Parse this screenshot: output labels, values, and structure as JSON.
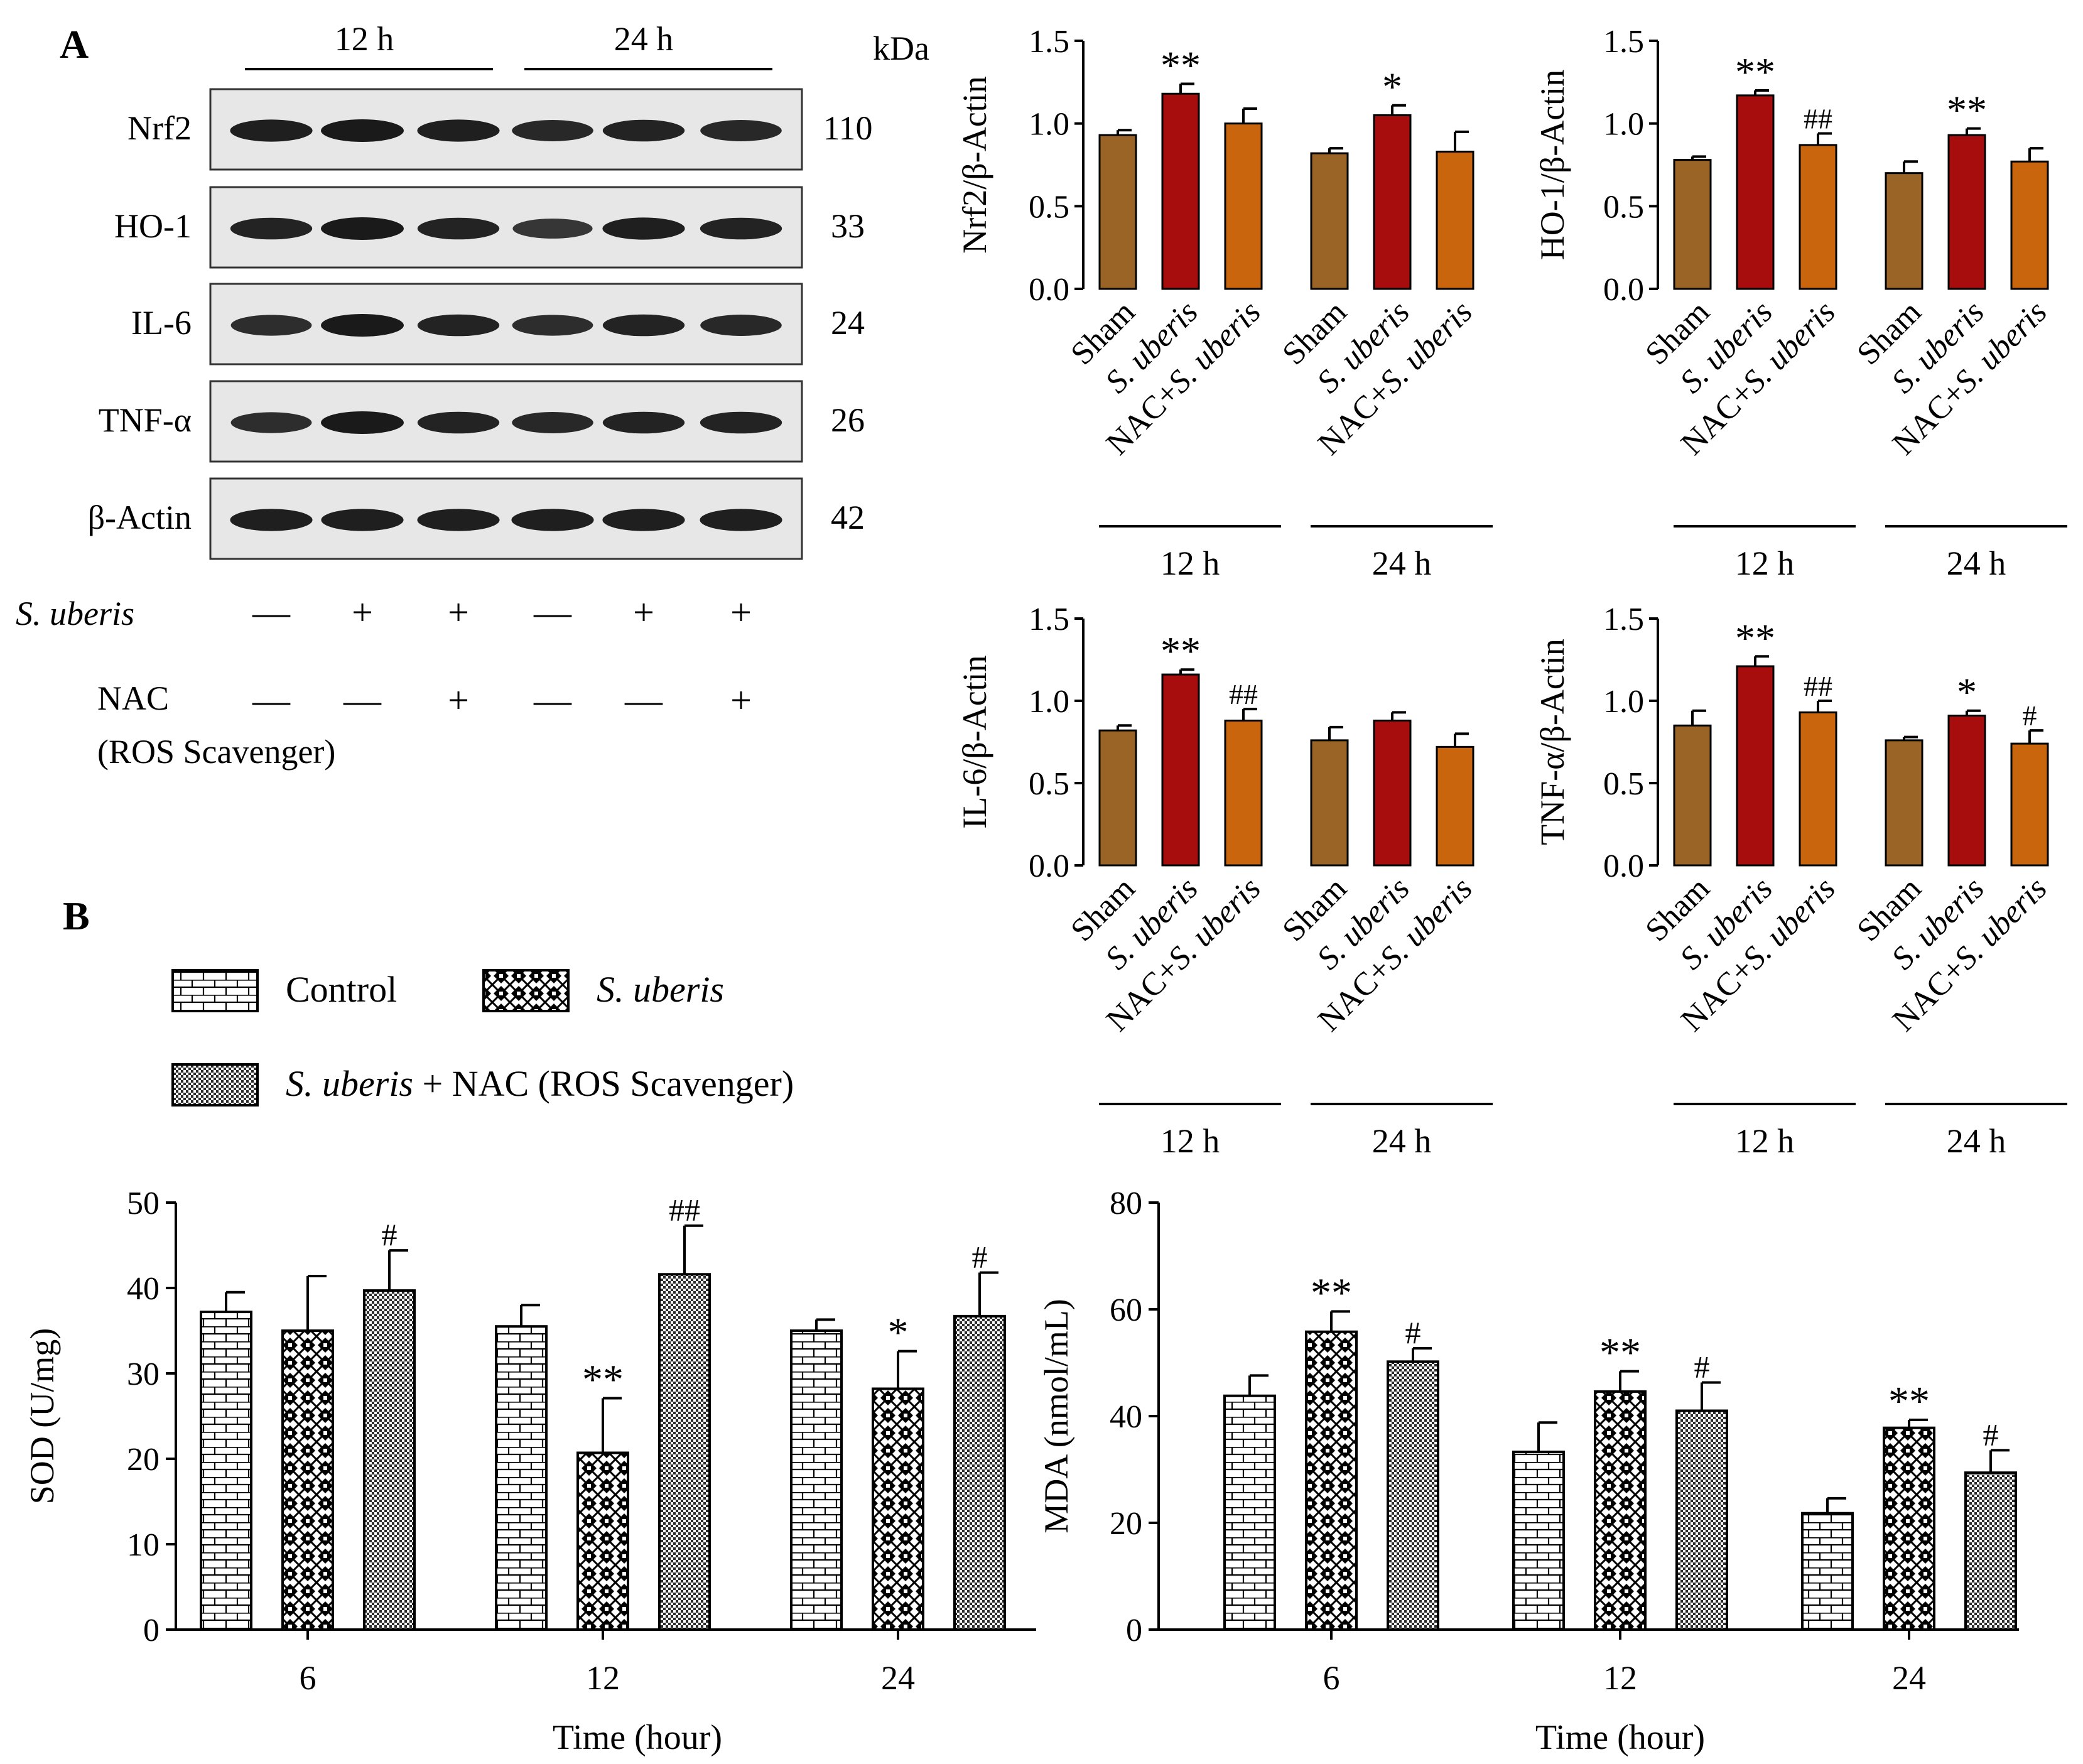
{
  "panel_labels": {
    "a": "A",
    "b": "B"
  },
  "colors": {
    "sham": "#9a6427",
    "s_uberis": "#a80d0d",
    "nac": "#c9650c",
    "blot_bg": "#e7e7e7",
    "band": "#1a1a1a"
  },
  "blot": {
    "time_labels": [
      "12 h",
      "24 h"
    ],
    "kda_header": "kDa",
    "proteins": [
      {
        "name": "Nrf2",
        "kda": "110",
        "intensity": [
          0.95,
          1.0,
          0.95,
          0.85,
          0.9,
          0.85
        ]
      },
      {
        "name": "HO-1",
        "kda": "33",
        "intensity": [
          0.9,
          1.0,
          0.9,
          0.7,
          0.95,
          0.9
        ]
      },
      {
        "name": "IL-6",
        "kda": "24",
        "intensity": [
          0.8,
          1.0,
          0.9,
          0.8,
          0.9,
          0.85
        ]
      },
      {
        "name": "TNF-α",
        "kda": "26",
        "intensity": [
          0.8,
          1.0,
          0.9,
          0.85,
          0.9,
          0.9
        ]
      },
      {
        "name": "β-Actin",
        "kda": "42",
        "intensity": [
          0.95,
          0.95,
          0.95,
          0.95,
          0.95,
          0.95
        ]
      }
    ],
    "treatments": [
      {
        "label": "S. uberis",
        "signs": [
          "—",
          "+",
          "+",
          "—",
          "+",
          "+"
        ]
      },
      {
        "label": "NAC",
        "label2": "(ROS Scavenger)",
        "signs": [
          "—",
          "—",
          "+",
          "—",
          "—",
          "+"
        ]
      }
    ]
  },
  "chart_data": [
    {
      "type": "bar",
      "ylabel": "Nrf2/β-Actin",
      "ylim": [
        0,
        1.5
      ],
      "yticks": [
        "0.0",
        "0.5",
        "1.0",
        "1.5"
      ],
      "categories": [
        "Sham",
        "S. uberis",
        "NAC+S. uberis"
      ],
      "groups": [
        "12 h",
        "24 h"
      ],
      "values": [
        [
          0.93,
          1.18,
          1.0
        ],
        [
          0.82,
          1.05,
          0.83
        ]
      ],
      "errors": [
        [
          0.03,
          0.06,
          0.09
        ],
        [
          0.03,
          0.06,
          0.12
        ]
      ],
      "annotations": [
        [
          "",
          "**",
          ""
        ],
        [
          "",
          "*",
          ""
        ]
      ]
    },
    {
      "type": "bar",
      "ylabel": "HO-1/β-Actin",
      "ylim": [
        0,
        1.5
      ],
      "yticks": [
        "0.0",
        "0.5",
        "1.0",
        "1.5"
      ],
      "categories": [
        "Sham",
        "S. uberis",
        "NAC+S. uberis"
      ],
      "groups": [
        "12 h",
        "24 h"
      ],
      "values": [
        [
          0.78,
          1.17,
          0.87
        ],
        [
          0.7,
          0.93,
          0.77
        ]
      ],
      "errors": [
        [
          0.02,
          0.03,
          0.07
        ],
        [
          0.07,
          0.04,
          0.08
        ]
      ],
      "annotations": [
        [
          "",
          "**",
          "##"
        ],
        [
          "",
          "**",
          ""
        ]
      ]
    },
    {
      "type": "bar",
      "ylabel": "IL-6/β-Actin",
      "ylim": [
        0,
        1.5
      ],
      "yticks": [
        "0.0",
        "0.5",
        "1.0",
        "1.5"
      ],
      "categories": [
        "Sham",
        "S. uberis",
        "NAC+S. uberis"
      ],
      "groups": [
        "12 h",
        "24 h"
      ],
      "values": [
        [
          0.82,
          1.16,
          0.88
        ],
        [
          0.76,
          0.88,
          0.72
        ]
      ],
      "errors": [
        [
          0.03,
          0.03,
          0.07
        ],
        [
          0.08,
          0.05,
          0.08
        ]
      ],
      "annotations": [
        [
          "",
          "**",
          "##"
        ],
        [
          "",
          "",
          ""
        ]
      ]
    },
    {
      "type": "bar",
      "ylabel": "TNF-α/β-Actin",
      "ylim": [
        0,
        1.5
      ],
      "yticks": [
        "0.0",
        "0.5",
        "1.0",
        "1.5"
      ],
      "categories": [
        "Sham",
        "S. uberis",
        "NAC+S. uberis"
      ],
      "groups": [
        "12 h",
        "24 h"
      ],
      "values": [
        [
          0.85,
          1.21,
          0.93
        ],
        [
          0.76,
          0.91,
          0.74
        ]
      ],
      "errors": [
        [
          0.09,
          0.06,
          0.07
        ],
        [
          0.02,
          0.03,
          0.08
        ]
      ],
      "annotations": [
        [
          "",
          "**",
          "##"
        ],
        [
          "",
          "*",
          "#"
        ]
      ]
    },
    {
      "type": "bar",
      "ylabel": "SOD (U/mg)",
      "xlabel": "Time (hour)",
      "ylim": [
        0,
        50
      ],
      "yticks": [
        "0",
        "10",
        "20",
        "30",
        "40",
        "50"
      ],
      "categories": [
        "6",
        "12",
        "24"
      ],
      "series_names": [
        "Control",
        "S. uberis",
        "S. uberis + NAC (ROS Scavenger)"
      ],
      "values": [
        [
          37.2,
          35.0,
          39.7
        ],
        [
          35.5,
          20.7,
          41.6
        ],
        [
          35.0,
          28.2,
          36.7
        ]
      ],
      "errors": [
        [
          2.3,
          6.4,
          4.7
        ],
        [
          2.5,
          6.4,
          5.7
        ],
        [
          1.3,
          4.4,
          5.1
        ]
      ],
      "annotations": [
        [
          "",
          "",
          "#"
        ],
        [
          "",
          "**",
          "##"
        ],
        [
          "",
          "*",
          "#"
        ]
      ]
    },
    {
      "type": "bar",
      "ylabel": "MDA (nmol/mL)",
      "xlabel": "Time (hour)",
      "ylim": [
        0,
        80
      ],
      "yticks": [
        "0",
        "20",
        "40",
        "60",
        "80"
      ],
      "categories": [
        "6",
        "12",
        "24"
      ],
      "series_names": [
        "Control",
        "S. uberis",
        "S. uberis + NAC (ROS Scavenger)"
      ],
      "values": [
        [
          43.8,
          55.8,
          50.2
        ],
        [
          33.3,
          44.6,
          41.0
        ],
        [
          21.8,
          37.8,
          29.4
        ]
      ],
      "errors": [
        [
          3.8,
          3.8,
          2.5
        ],
        [
          5.5,
          3.8,
          5.3
        ],
        [
          2.8,
          1.5,
          4.2
        ]
      ],
      "annotations": [
        [
          "",
          "**",
          "#"
        ],
        [
          "",
          "**",
          "#"
        ],
        [
          "",
          "**",
          "#"
        ]
      ]
    }
  ],
  "legend": [
    {
      "label": "Control",
      "pattern": "brick"
    },
    {
      "label": "S. uberis",
      "pattern": "cross"
    },
    {
      "label": "S. uberis",
      "label_rest": " + NAC (ROS Scavenger)",
      "pattern": "dots"
    }
  ]
}
